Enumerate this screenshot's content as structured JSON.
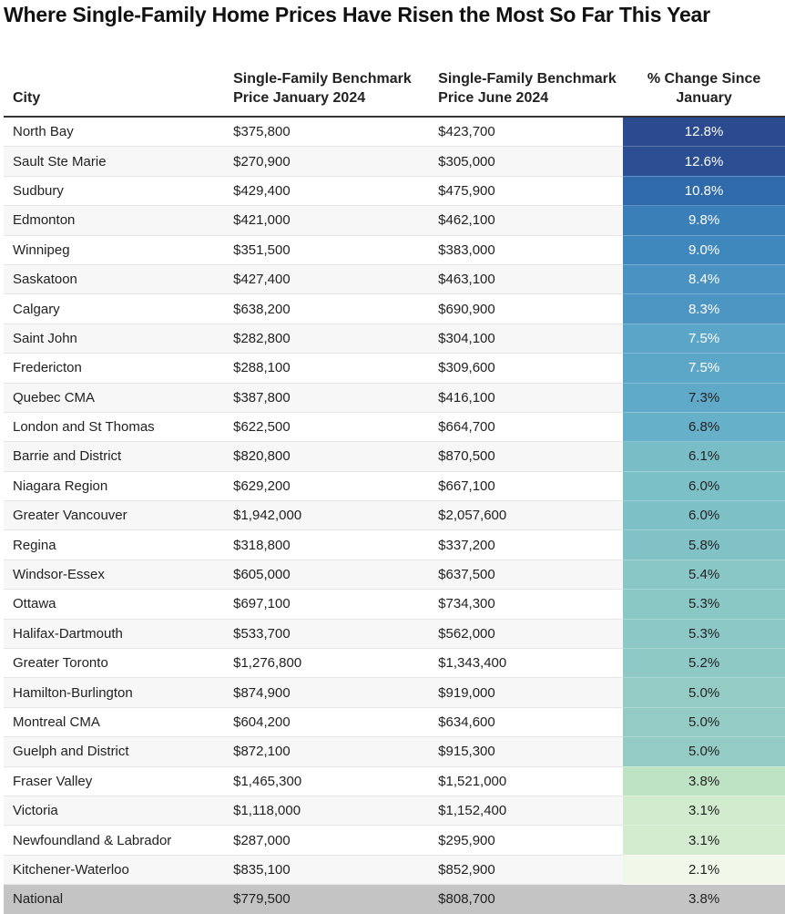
{
  "title": "Where Single-Family Home Prices Have Risen the Most So Far This Year",
  "table": {
    "columns": [
      "City",
      "Single-Family Benchmark Price January 2024",
      "Single-Family Benchmark Price June 2024",
      "% Change Since January"
    ],
    "rows": [
      [
        "North Bay",
        "$375,800",
        "$423,700",
        "12.8%"
      ],
      [
        "Sault Ste Marie",
        "$270,900",
        "$305,000",
        "12.6%"
      ],
      [
        "Sudbury",
        "$429,400",
        "$475,900",
        "10.8%"
      ],
      [
        "Edmonton",
        "$421,000",
        "$462,100",
        "9.8%"
      ],
      [
        "Winnipeg",
        "$351,500",
        "$383,000",
        "9.0%"
      ],
      [
        "Saskatoon",
        "$427,400",
        "$463,100",
        "8.4%"
      ],
      [
        "Calgary",
        "$638,200",
        "$690,900",
        "8.3%"
      ],
      [
        "Saint John",
        "$282,800",
        "$304,100",
        "7.5%"
      ],
      [
        "Fredericton",
        "$288,100",
        "$309,600",
        "7.5%"
      ],
      [
        "Quebec CMA",
        "$387,800",
        "$416,100",
        "7.3%"
      ],
      [
        "London and St Thomas",
        "$622,500",
        "$664,700",
        "6.8%"
      ],
      [
        "Barrie and District",
        "$820,800",
        "$870,500",
        "6.1%"
      ],
      [
        "Niagara Region",
        "$629,200",
        "$667,100",
        "6.0%"
      ],
      [
        "Greater Vancouver",
        "$1,942,000",
        "$2,057,600",
        "6.0%"
      ],
      [
        "Regina",
        "$318,800",
        "$337,200",
        "5.8%"
      ],
      [
        "Windsor-Essex",
        "$605,000",
        "$637,500",
        "5.4%"
      ],
      [
        "Ottawa",
        "$697,100",
        "$734,300",
        "5.3%"
      ],
      [
        "Halifax-Dartmouth",
        "$533,700",
        "$562,000",
        "5.3%"
      ],
      [
        "Greater Toronto",
        "$1,276,800",
        "$1,343,400",
        "5.2%"
      ],
      [
        "Hamilton-Burlington",
        "$874,900",
        "$919,000",
        "5.0%"
      ],
      [
        "Montreal CMA",
        "$604,200",
        "$634,600",
        "5.0%"
      ],
      [
        "Guelph and District",
        "$872,100",
        "$915,300",
        "5.0%"
      ],
      [
        "Fraser Valley",
        "$1,465,300",
        "$1,521,000",
        "3.8%"
      ],
      [
        "Victoria",
        "$1,118,000",
        "$1,152,400",
        "3.1%"
      ],
      [
        "Newfoundland & Labrador",
        "$287,000",
        "$295,900",
        "3.1%"
      ],
      [
        "Kitchener-Waterloo",
        "$835,100",
        "$852,900",
        "2.1%"
      ]
    ],
    "row_colors": [
      "#2b4a8f",
      "#2c4f93",
      "#2f6aaa",
      "#3a7fb8",
      "#3f88bd",
      "#4a92c2",
      "#4d95c3",
      "#5aa5c8",
      "#5ca6c8",
      "#5fa9c9",
      "#66b0c9",
      "#79bec7",
      "#7cc0c7",
      "#7dc1c7",
      "#80c2c6",
      "#88c7c6",
      "#8ac8c6",
      "#8bc8c6",
      "#8ec9c5",
      "#94ccc5",
      "#94ccc5",
      "#94ccc5",
      "#bde3c4",
      "#d2ebcf",
      "#d3ecd0",
      "#f1f8e9"
    ],
    "footer": [
      "National",
      "$779,500",
      "$808,700",
      "3.8%"
    ],
    "footer_color": "#c4c4c4"
  }
}
